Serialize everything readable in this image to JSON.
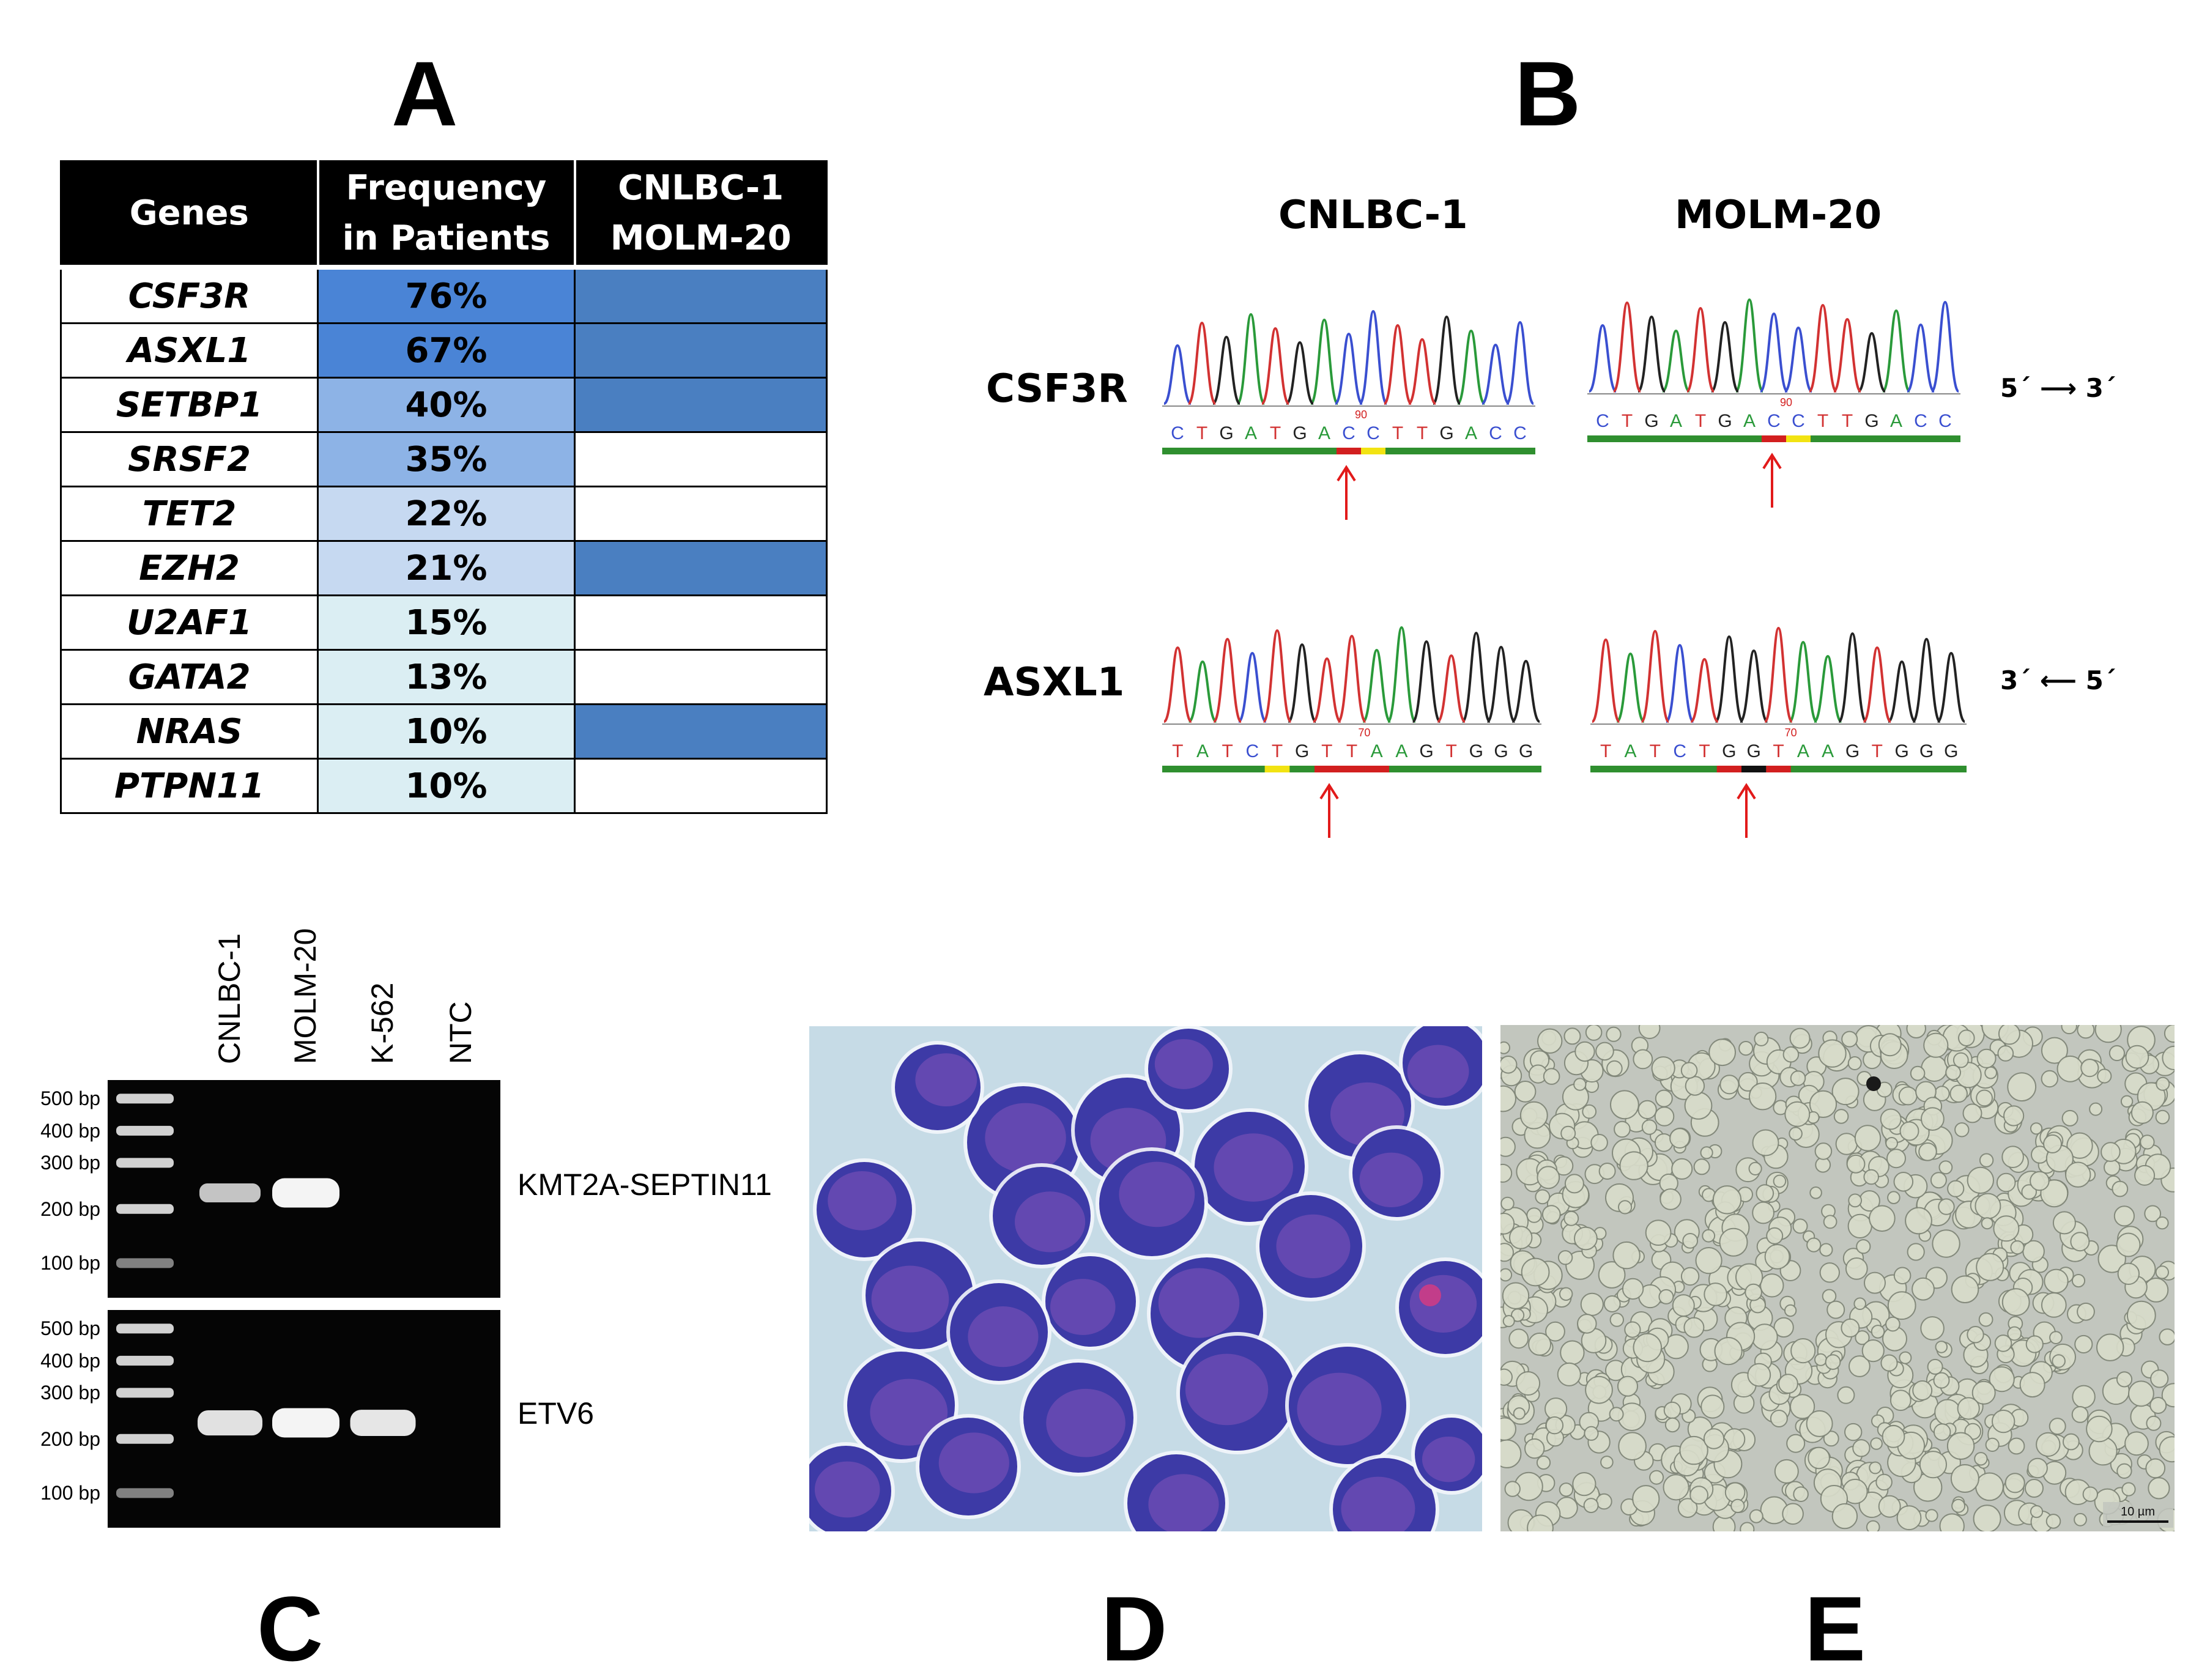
{
  "panels": {
    "a": "A",
    "b": "B",
    "c": "C",
    "d": "D",
    "e": "E"
  },
  "table": {
    "headers": [
      [
        "Genes"
      ],
      [
        "Frequency",
        "in Patients"
      ],
      [
        "CNLBC-1",
        "MOLM-20"
      ]
    ],
    "rows": [
      {
        "gene": "CSF3R",
        "freq": "76%",
        "freq_color": "#4a84d6",
        "cell_color": "#4a7fc1"
      },
      {
        "gene": "ASXL1",
        "freq": "67%",
        "freq_color": "#4a84d6",
        "cell_color": "#4a7fc1"
      },
      {
        "gene": "SETBP1",
        "freq": "40%",
        "freq_color": "#8db3e6",
        "cell_color": "#4a7fc1"
      },
      {
        "gene": "SRSF2",
        "freq": "35%",
        "freq_color": "#8db3e6",
        "cell_color": "#ffffff"
      },
      {
        "gene": "TET2",
        "freq": "22%",
        "freq_color": "#c6d9f1",
        "cell_color": "#ffffff"
      },
      {
        "gene": "EZH2",
        "freq": "21%",
        "freq_color": "#c6d9f1",
        "cell_color": "#4a7fc1"
      },
      {
        "gene": "U2AF1",
        "freq": "15%",
        "freq_color": "#dbeef3",
        "cell_color": "#ffffff"
      },
      {
        "gene": "GATA2",
        "freq": "13%",
        "freq_color": "#dbeef3",
        "cell_color": "#ffffff"
      },
      {
        "gene": "NRAS",
        "freq": "10%",
        "freq_color": "#dbeef3",
        "cell_color": "#4a7fc1"
      },
      {
        "gene": "PTPN11",
        "freq": "10%",
        "freq_color": "#dbeef3",
        "cell_color": "#ffffff"
      }
    ]
  },
  "sequencing": {
    "col_titles": [
      "CNLBC-1",
      "MOLM-20"
    ],
    "rows": [
      {
        "label": "CSF3R",
        "direction": "5´ ⟶ 3´",
        "traces": [
          {
            "bases": "CTGATGACCTTGACC",
            "position": "90"
          },
          {
            "bases": "CTGATGACCTTGACC",
            "position": "90"
          }
        ]
      },
      {
        "label": "ASXL1",
        "direction": "3´ ⟵ 5´",
        "traces": [
          {
            "bases": "TATCTGTTAAGTGGG",
            "position": "70"
          },
          {
            "bases": "TATCTGGTAAGTGGG",
            "position": "70"
          }
        ]
      }
    ],
    "base_colors": {
      "A": "#2a9a3a",
      "C": "#3a4fd0",
      "G": "#222222",
      "T": "#d23232"
    }
  },
  "gel": {
    "lanes": [
      "CNLBC-1",
      "MOLM-20",
      "K-562",
      "NTC"
    ],
    "ladder": [
      "500 bp",
      "400 bp",
      "300 bp",
      "200 bp",
      "100 bp"
    ],
    "blots": [
      {
        "name": "KMT2A-SEPTIN11",
        "bands": [
          0.5,
          1.0,
          0,
          0
        ]
      },
      {
        "name": "ETV6",
        "bands": [
          0.8,
          1.0,
          0.85,
          0
        ]
      }
    ]
  },
  "micrographs": {
    "d_colors": {
      "background": "#c6dbe6",
      "cell": "#3d3aa6",
      "nucleus": "#6a4bb3"
    },
    "e_colors": {
      "background": "#c2c6be",
      "cell": "#d8dcca"
    },
    "scale_bar": "10 µm"
  }
}
